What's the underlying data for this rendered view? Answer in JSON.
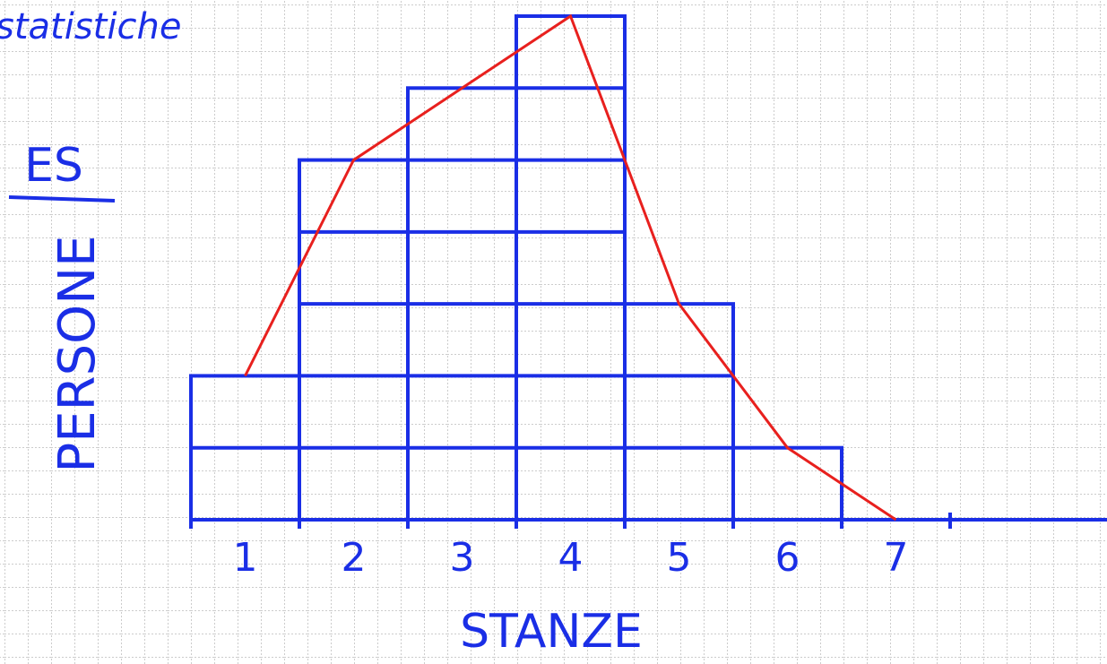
{
  "chart_data": {
    "type": "bar",
    "title": "statistiche",
    "subtitle": "ES",
    "y_label": "PERSONE",
    "x_label": "STANZE",
    "categories": [
      "1",
      "2",
      "3",
      "4",
      "5",
      "6",
      "7"
    ],
    "values": [
      2,
      5,
      6,
      7,
      3,
      1,
      0
    ],
    "color": "#1a2ee6",
    "polygon_color": "#e8201e",
    "ylim": [
      0,
      7
    ]
  }
}
